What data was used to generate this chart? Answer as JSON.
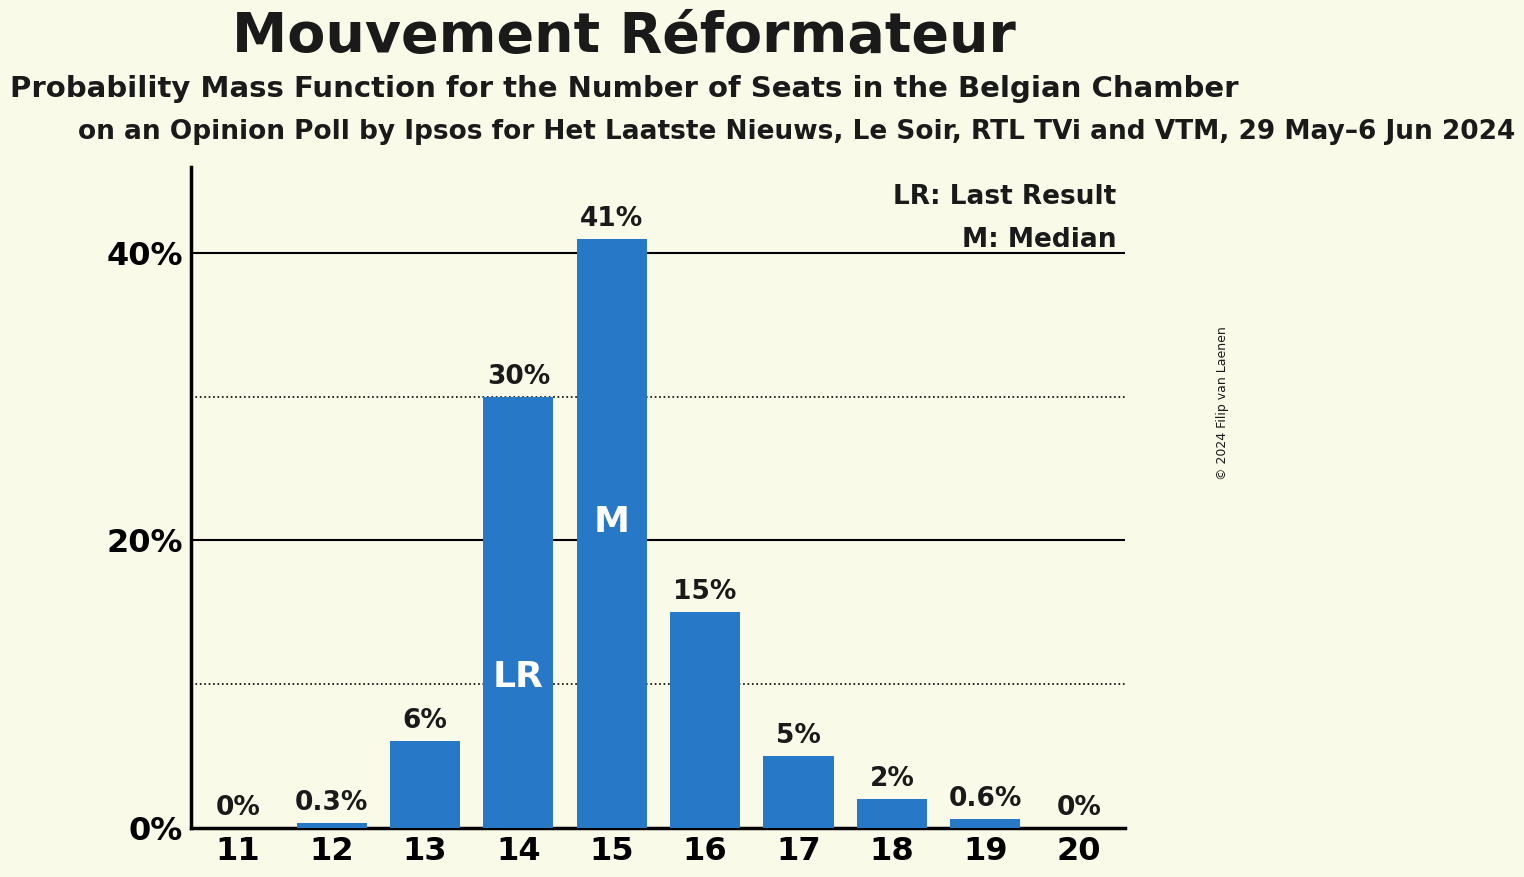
{
  "title": "Mouvement Réformateur",
  "subtitle1": "Probability Mass Function for the Number of Seats in the Belgian Chamber",
  "subtitle2": "on an Opinion Poll by Ipsos for Het Laatste Nieuws, Le Soir, RTL TVi and VTM, 29 May–6 Jun 2024",
  "copyright": "© 2024 Filip van Laenen",
  "seats": [
    11,
    12,
    13,
    14,
    15,
    16,
    17,
    18,
    19,
    20
  ],
  "probabilities": [
    0.0,
    0.3,
    6.0,
    30.0,
    41.0,
    15.0,
    5.0,
    2.0,
    0.6,
    0.0
  ],
  "bar_labels": [
    "0%",
    "0.3%",
    "6%",
    "30%",
    "41%",
    "15%",
    "5%",
    "2%",
    "0.6%",
    "0%"
  ],
  "bar_color": "#2878c8",
  "background_color": "#fafae8",
  "text_color": "#1a1a1a",
  "yticks": [
    0,
    20,
    40
  ],
  "ylim": [
    0,
    46
  ],
  "dotted_lines": [
    10,
    30
  ],
  "solid_lines": [
    20,
    40
  ],
  "lr_seat": 14,
  "median_seat": 15,
  "legend_lr": "LR: Last Result",
  "legend_m": "M: Median",
  "title_fontsize": 40,
  "subtitle1_fontsize": 21,
  "subtitle2_fontsize": 19,
  "bar_label_fontsize": 19,
  "axis_label_fontsize": 23,
  "annotation_fontsize": 26,
  "legend_fontsize": 19,
  "copyright_fontsize": 9
}
